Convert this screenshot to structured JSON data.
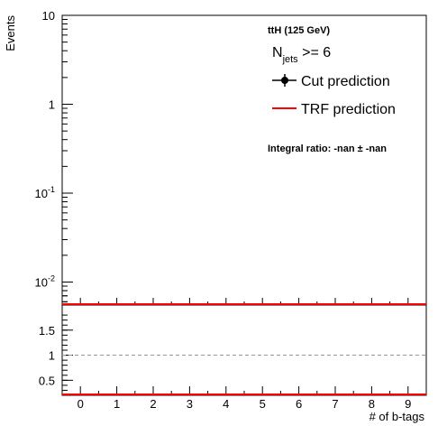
{
  "chart_data": [
    {
      "type": "line",
      "panel": "main",
      "process_label": "ttH (125 GeV)",
      "njets_label": {
        "base": "N",
        "sub": "jets",
        "rest": " >= 6"
      },
      "ylabel": "Events",
      "ylim": [
        0.005,
        10
      ],
      "log_y": true,
      "yticks": [
        {
          "value": 10,
          "label": "10"
        },
        {
          "value": 1,
          "label": "1"
        },
        {
          "value": 0.1,
          "base": "10",
          "exp": "-1"
        },
        {
          "value": 0.01,
          "base": "10",
          "exp": "-2"
        }
      ],
      "series": [
        {
          "name": "Cut prediction",
          "color": "#000000",
          "marker": "circle",
          "values": []
        },
        {
          "name": "TRF prediction",
          "color": "#ff0000",
          "values": []
        }
      ],
      "integral_ratio_label": "Integral ratio: -nan ± -nan"
    },
    {
      "type": "line",
      "panel": "ratio",
      "xlabel": "# of b-tags",
      "xlim": [
        -0.5,
        9.5
      ],
      "xticks": [
        "0",
        "1",
        "2",
        "3",
        "4",
        "5",
        "6",
        "7",
        "8",
        "9"
      ],
      "ylim": [
        0.2,
        2.0
      ],
      "yticks": [
        {
          "value": 1.5,
          "label": "1.5"
        },
        {
          "value": 1.0,
          "label": "1"
        },
        {
          "value": 0.5,
          "label": "0.5"
        }
      ],
      "reference_line": 1.0,
      "series": [
        {
          "name": "ratio",
          "color": "#ff0000",
          "values": []
        }
      ]
    }
  ]
}
